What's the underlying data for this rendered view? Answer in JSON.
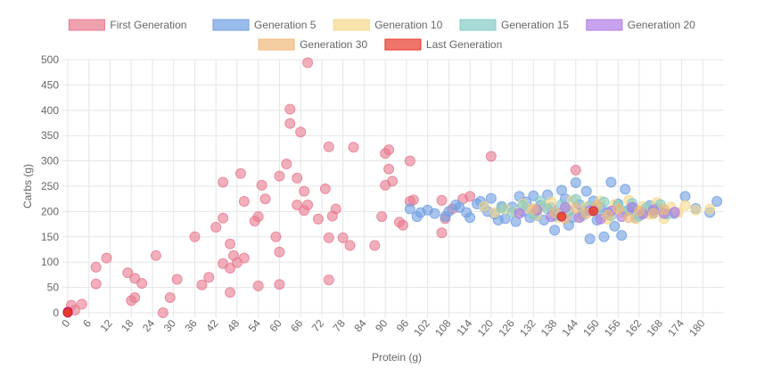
{
  "chart_data": {
    "type": "scatter",
    "title": "",
    "xlabel": "Protein (g)",
    "ylabel": "Carbs (g)",
    "xlim": [
      0,
      186
    ],
    "ylim": [
      0,
      500
    ],
    "x_ticks": [
      0,
      6,
      12,
      18,
      24,
      30,
      36,
      42,
      48,
      54,
      60,
      66,
      72,
      78,
      84,
      90,
      96,
      102,
      108,
      114,
      120,
      126,
      132,
      138,
      144,
      150,
      156,
      162,
      168,
      174,
      180
    ],
    "y_ticks": [
      0,
      50,
      100,
      150,
      200,
      250,
      300,
      350,
      400,
      450,
      500
    ],
    "grid": true,
    "legend_position": "top",
    "series": [
      {
        "name": "First Generation",
        "color": "#e8798f",
        "points": [
          [
            1,
            15
          ],
          [
            2,
            5
          ],
          [
            4,
            17
          ],
          [
            8,
            90
          ],
          [
            8,
            57
          ],
          [
            11,
            108
          ],
          [
            17,
            79
          ],
          [
            18,
            24
          ],
          [
            19,
            30
          ],
          [
            19,
            68
          ],
          [
            21,
            58
          ],
          [
            25,
            113
          ],
          [
            27,
            0
          ],
          [
            29,
            30
          ],
          [
            31,
            66
          ],
          [
            36,
            150
          ],
          [
            38,
            55
          ],
          [
            40,
            70
          ],
          [
            42,
            169
          ],
          [
            44,
            187
          ],
          [
            44,
            258
          ],
          [
            44,
            97
          ],
          [
            46,
            88
          ],
          [
            46,
            40
          ],
          [
            46,
            136
          ],
          [
            47,
            113
          ],
          [
            48,
            99
          ],
          [
            49,
            275
          ],
          [
            50,
            108
          ],
          [
            50,
            220
          ],
          [
            53,
            181
          ],
          [
            54,
            53
          ],
          [
            54,
            190
          ],
          [
            55,
            252
          ],
          [
            56,
            225
          ],
          [
            59,
            150
          ],
          [
            60,
            270
          ],
          [
            60,
            120
          ],
          [
            60,
            56
          ],
          [
            62,
            294
          ],
          [
            63,
            402
          ],
          [
            63,
            374
          ],
          [
            65,
            266
          ],
          [
            65,
            213
          ],
          [
            66,
            357
          ],
          [
            67,
            202
          ],
          [
            67,
            240
          ],
          [
            68,
            494
          ],
          [
            68,
            213
          ],
          [
            71,
            185
          ],
          [
            73,
            245
          ],
          [
            74,
            328
          ],
          [
            74,
            148
          ],
          [
            74,
            65
          ],
          [
            75,
            191
          ],
          [
            76,
            205
          ],
          [
            78,
            148
          ],
          [
            80,
            133
          ],
          [
            81,
            327
          ],
          [
            87,
            133
          ],
          [
            89,
            190
          ],
          [
            90,
            252
          ],
          [
            90,
            315
          ],
          [
            91,
            322
          ],
          [
            91,
            284
          ],
          [
            92,
            260
          ],
          [
            94,
            179
          ],
          [
            95,
            173
          ],
          [
            97,
            300
          ],
          [
            97,
            220
          ],
          [
            98,
            223
          ],
          [
            106,
            158
          ],
          [
            106,
            222
          ],
          [
            107,
            186
          ],
          [
            109,
            205
          ],
          [
            112,
            225
          ],
          [
            114,
            230
          ],
          [
            120,
            309
          ],
          [
            144,
            282
          ]
        ]
      },
      {
        "name": "Generation 5",
        "color": "#6f9fe3",
        "points": [
          [
            97,
            205
          ],
          [
            99,
            190
          ],
          [
            100,
            198
          ],
          [
            102,
            203
          ],
          [
            104,
            196
          ],
          [
            107,
            190
          ],
          [
            108,
            200
          ],
          [
            110,
            213
          ],
          [
            111,
            208
          ],
          [
            113,
            198
          ],
          [
            114,
            188
          ],
          [
            116,
            215
          ],
          [
            117,
            220
          ],
          [
            118,
            209
          ],
          [
            119,
            200
          ],
          [
            120,
            226
          ],
          [
            121,
            195
          ],
          [
            122,
            183
          ],
          [
            123,
            210
          ],
          [
            124,
            186
          ],
          [
            126,
            209
          ],
          [
            127,
            180
          ],
          [
            128,
            230
          ],
          [
            129,
            200
          ],
          [
            130,
            219
          ],
          [
            131,
            188
          ],
          [
            132,
            231
          ],
          [
            133,
            192
          ],
          [
            134,
            212
          ],
          [
            135,
            183
          ],
          [
            136,
            233
          ],
          [
            137,
            208
          ],
          [
            138,
            163
          ],
          [
            139,
            196
          ],
          [
            140,
            242
          ],
          [
            141,
            225
          ],
          [
            142,
            173
          ],
          [
            143,
            188
          ],
          [
            144,
            257
          ],
          [
            145,
            214
          ],
          [
            146,
            200
          ],
          [
            147,
            240
          ],
          [
            148,
            146
          ],
          [
            149,
            221
          ],
          [
            150,
            183
          ],
          [
            151,
            208
          ],
          [
            152,
            150
          ],
          [
            153,
            198
          ],
          [
            154,
            258
          ],
          [
            155,
            171
          ],
          [
            156,
            215
          ],
          [
            157,
            153
          ],
          [
            158,
            244
          ],
          [
            159,
            203
          ],
          [
            160,
            209
          ],
          [
            161,
            187
          ],
          [
            163,
            199
          ],
          [
            165,
            212
          ],
          [
            167,
            206
          ],
          [
            172,
            196
          ],
          [
            175,
            230
          ],
          [
            178,
            206
          ],
          [
            182,
            198
          ],
          [
            184,
            220
          ]
        ]
      },
      {
        "name": "Generation 10",
        "color": "#f5d88a",
        "points": [
          [
            118,
            210
          ],
          [
            121,
            198
          ],
          [
            124,
            205
          ],
          [
            127,
            198
          ],
          [
            129,
            215
          ],
          [
            131,
            204
          ],
          [
            133,
            193
          ],
          [
            135,
            211
          ],
          [
            137,
            219
          ],
          [
            139,
            188
          ],
          [
            141,
            206
          ],
          [
            143,
            222
          ],
          [
            145,
            190
          ],
          [
            147,
            210
          ],
          [
            149,
            200
          ],
          [
            151,
            221
          ],
          [
            153,
            185
          ],
          [
            155,
            214
          ],
          [
            157,
            198
          ],
          [
            159,
            222
          ],
          [
            161,
            186
          ],
          [
            163,
            210
          ],
          [
            165,
            195
          ],
          [
            167,
            218
          ],
          [
            169,
            186
          ],
          [
            171,
            209
          ],
          [
            173,
            198
          ],
          [
            175,
            212
          ],
          [
            178,
            203
          ],
          [
            182,
            205
          ]
        ]
      },
      {
        "name": "Generation 15",
        "color": "#83ccc4",
        "points": [
          [
            123,
            207
          ],
          [
            126,
            198
          ],
          [
            129,
            212
          ],
          [
            132,
            195
          ],
          [
            134,
            221
          ],
          [
            136,
            205
          ],
          [
            138,
            191
          ],
          [
            140,
            214
          ],
          [
            142,
            201
          ],
          [
            144,
            224
          ],
          [
            146,
            192
          ],
          [
            148,
            210
          ],
          [
            150,
            199
          ],
          [
            152,
            219
          ],
          [
            154,
            192
          ],
          [
            156,
            212
          ],
          [
            158,
            201
          ],
          [
            160,
            216
          ],
          [
            162,
            191
          ],
          [
            164,
            207
          ],
          [
            166,
            198
          ],
          [
            168,
            214
          ],
          [
            170,
            195
          ]
        ]
      },
      {
        "name": "Generation 20",
        "color": "#b07ce6",
        "points": [
          [
            128,
            196
          ],
          [
            133,
            203
          ],
          [
            137,
            190
          ],
          [
            141,
            208
          ],
          [
            145,
            188
          ],
          [
            148,
            202
          ],
          [
            151,
            185
          ],
          [
            154,
            201
          ],
          [
            157,
            190
          ],
          [
            160,
            208
          ],
          [
            163,
            195
          ],
          [
            166,
            203
          ],
          [
            169,
            196
          ],
          [
            172,
            199
          ]
        ]
      },
      {
        "name": "Generation 30",
        "color": "#f0b878",
        "points": [
          [
            132,
            205
          ],
          [
            138,
            198
          ],
          [
            141,
            186
          ],
          [
            144,
            206
          ],
          [
            147,
            196
          ],
          [
            150,
            212
          ],
          [
            153,
            193
          ],
          [
            156,
            205
          ],
          [
            159,
            188
          ],
          [
            162,
            201
          ],
          [
            166,
            196
          ],
          [
            169,
            204
          ]
        ]
      },
      {
        "name": "Last Generation",
        "color": "#e8392a",
        "points": [
          [
            0,
            1
          ],
          [
            0,
            2
          ],
          [
            0,
            0
          ],
          [
            140,
            190
          ],
          [
            149,
            201
          ]
        ]
      }
    ]
  }
}
